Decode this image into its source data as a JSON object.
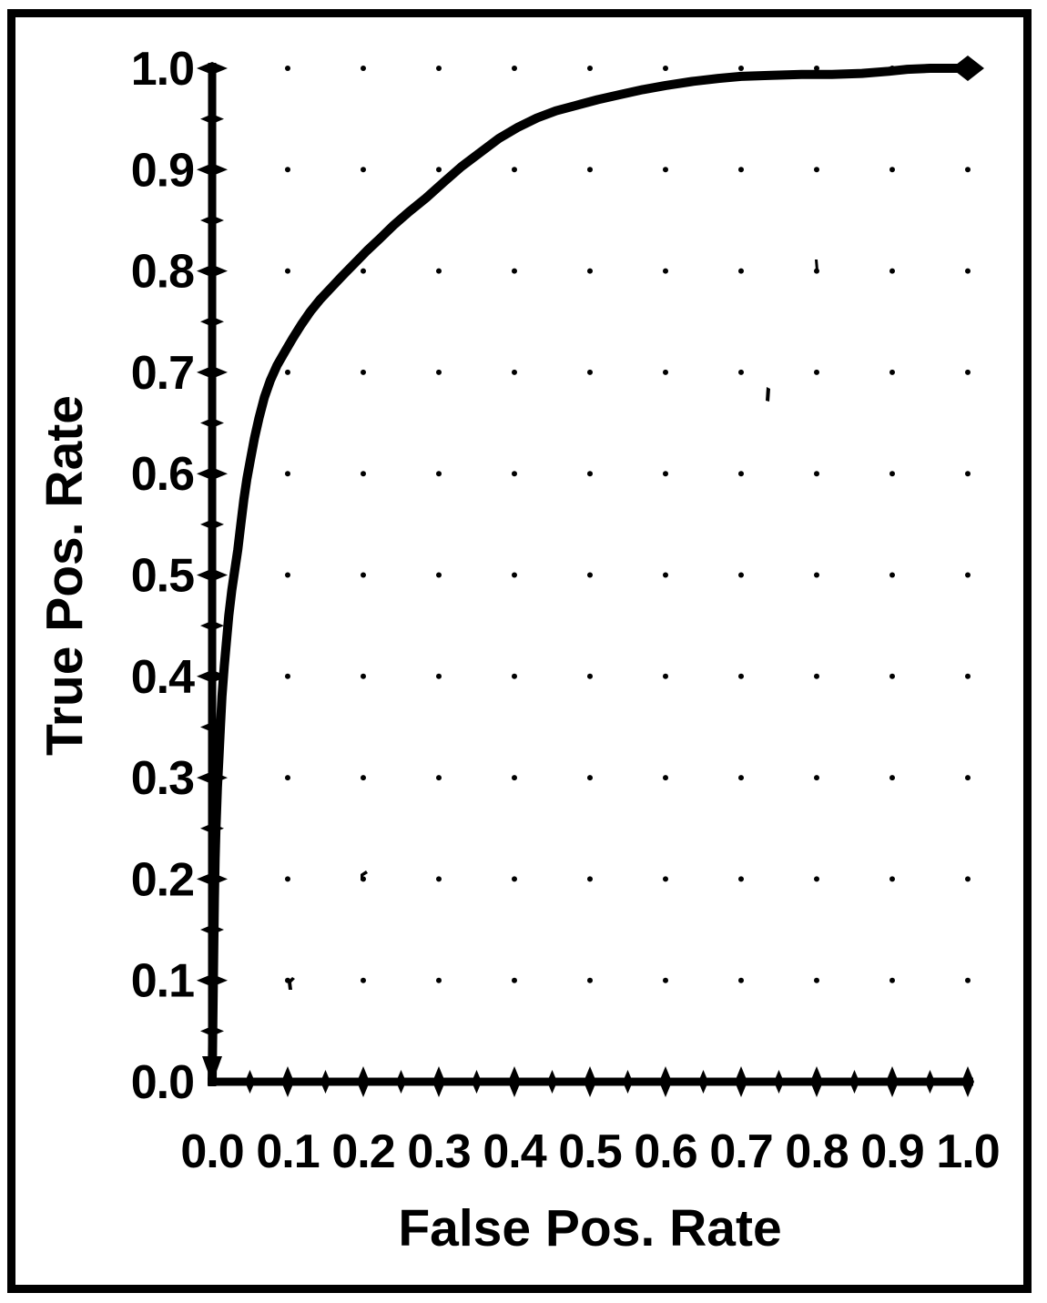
{
  "figure": {
    "background_color": "#ffffff",
    "ink_color": "#000000",
    "frame": "thick black rectangular border around entire figure"
  },
  "chart_data": {
    "type": "line",
    "title": "",
    "xlabel": "False Pos. Rate",
    "ylabel": "True Pos. Rate",
    "xlim": [
      0.0,
      1.0
    ],
    "ylim": [
      0.0,
      1.0
    ],
    "x_tick_labels": [
      "0.0",
      "0.1",
      "0.2",
      "0.3",
      "0.4",
      "0.5",
      "0.6",
      "0.7",
      "0.8",
      "0.9",
      "1.0"
    ],
    "y_tick_labels": [
      "0.0",
      "0.1",
      "0.2",
      "0.3",
      "0.4",
      "0.5",
      "0.6",
      "0.7",
      "0.8",
      "0.9",
      "1.0"
    ],
    "minor_tick_interval": 0.05,
    "major_tick_interval": 0.1,
    "grid": "dots at 0.1 x 0.1 grid intersections",
    "legend": null,
    "series": [
      {
        "name": "ROC curve",
        "color": "#000000",
        "end_marker": "diamond arrowhead at (1.0, 1.0)",
        "points": [
          [
            0.0,
            0.0
          ],
          [
            0.001,
            0.06
          ],
          [
            0.002,
            0.125
          ],
          [
            0.003,
            0.18
          ],
          [
            0.004,
            0.22
          ],
          [
            0.005,
            0.25
          ],
          [
            0.007,
            0.29
          ],
          [
            0.009,
            0.32
          ],
          [
            0.011,
            0.35
          ],
          [
            0.013,
            0.38
          ],
          [
            0.016,
            0.41
          ],
          [
            0.019,
            0.435
          ],
          [
            0.022,
            0.46
          ],
          [
            0.026,
            0.485
          ],
          [
            0.03,
            0.505
          ],
          [
            0.034,
            0.525
          ],
          [
            0.038,
            0.55
          ],
          [
            0.042,
            0.575
          ],
          [
            0.046,
            0.595
          ],
          [
            0.051,
            0.615
          ],
          [
            0.056,
            0.635
          ],
          [
            0.062,
            0.655
          ],
          [
            0.069,
            0.675
          ],
          [
            0.077,
            0.692
          ],
          [
            0.086,
            0.707
          ],
          [
            0.096,
            0.72
          ],
          [
            0.107,
            0.734
          ],
          [
            0.118,
            0.747
          ],
          [
            0.13,
            0.76
          ],
          [
            0.143,
            0.772
          ],
          [
            0.157,
            0.783
          ],
          [
            0.172,
            0.795
          ],
          [
            0.188,
            0.807
          ],
          [
            0.205,
            0.82
          ],
          [
            0.222,
            0.832
          ],
          [
            0.24,
            0.845
          ],
          [
            0.26,
            0.858
          ],
          [
            0.283,
            0.872
          ],
          [
            0.307,
            0.888
          ],
          [
            0.33,
            0.903
          ],
          [
            0.355,
            0.917
          ],
          [
            0.38,
            0.931
          ],
          [
            0.405,
            0.942
          ],
          [
            0.43,
            0.951
          ],
          [
            0.455,
            0.958
          ],
          [
            0.48,
            0.963
          ],
          [
            0.51,
            0.969
          ],
          [
            0.54,
            0.974
          ],
          [
            0.57,
            0.979
          ],
          [
            0.6,
            0.983
          ],
          [
            0.635,
            0.987
          ],
          [
            0.67,
            0.99
          ],
          [
            0.7,
            0.992
          ],
          [
            0.74,
            0.993
          ],
          [
            0.78,
            0.994
          ],
          [
            0.82,
            0.994
          ],
          [
            0.86,
            0.995
          ],
          [
            0.895,
            0.997
          ],
          [
            0.92,
            0.999
          ],
          [
            0.95,
            1.0
          ],
          [
            1.0,
            1.0
          ]
        ]
      }
    ]
  }
}
